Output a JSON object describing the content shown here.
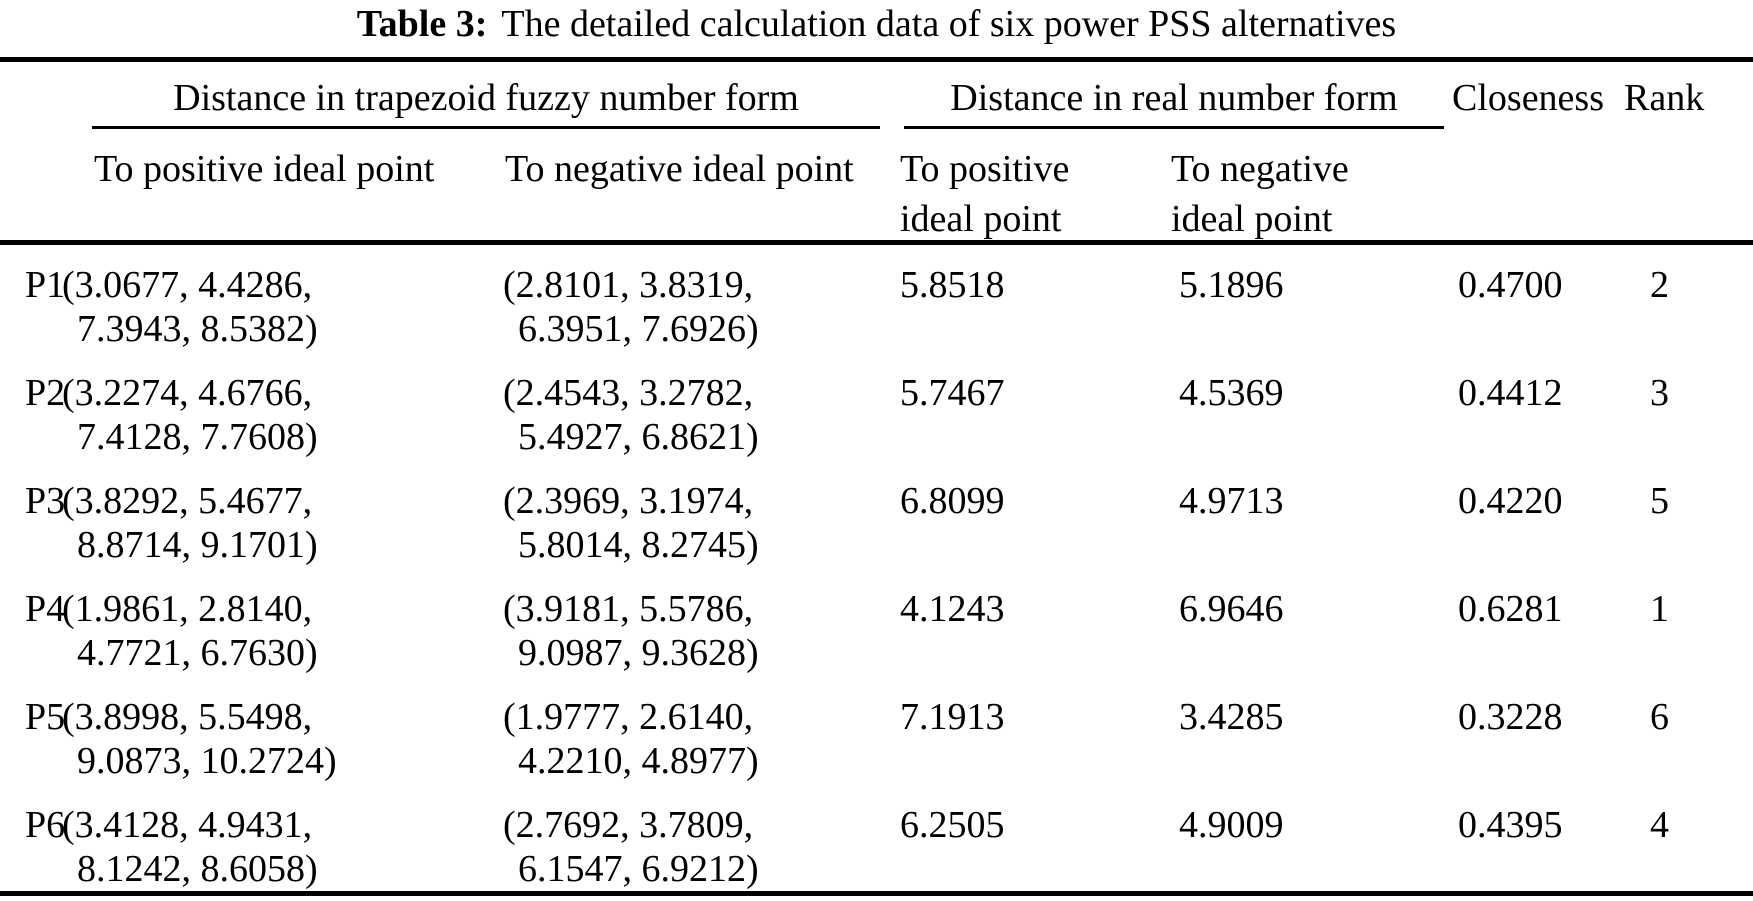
{
  "table": {
    "title": {
      "label": "Table 3:",
      "text": "The detailed calculation data of six power PSS alternatives"
    },
    "groups": {
      "fuzzy": "Distance in trapezoid fuzzy number form",
      "real": "Distance in real number form",
      "closeness": "Closeness",
      "rank": "Rank"
    },
    "subheaders": {
      "fuzzy_pos": "To positive ideal point",
      "fuzzy_neg": "To negative ideal point",
      "real_pos_line1": "To positive",
      "real_pos_line2": "ideal point",
      "real_neg_line1": "To negative",
      "real_neg_line2": "ideal point"
    },
    "rows": [
      {
        "id": "P1",
        "fuzzy_pos1": "(3.0677, 4.4286,",
        "fuzzy_pos2": "7.3943, 8.5382)",
        "fuzzy_neg1": "(2.8101, 3.8319,",
        "fuzzy_neg2": "6.3951, 7.6926)",
        "real_pos": "5.8518",
        "real_neg": "5.1896",
        "closeness": "0.4700",
        "rank": "2"
      },
      {
        "id": "P2",
        "fuzzy_pos1": "(3.2274, 4.6766,",
        "fuzzy_pos2": "7.4128, 7.7608)",
        "fuzzy_neg1": "(2.4543, 3.2782,",
        "fuzzy_neg2": "5.4927, 6.8621)",
        "real_pos": "5.7467",
        "real_neg": "4.5369",
        "closeness": "0.4412",
        "rank": "3"
      },
      {
        "id": "P3",
        "fuzzy_pos1": "(3.8292, 5.4677,",
        "fuzzy_pos2": "8.8714, 9.1701)",
        "fuzzy_neg1": "(2.3969, 3.1974,",
        "fuzzy_neg2": "5.8014, 8.2745)",
        "real_pos": "6.8099",
        "real_neg": "4.9713",
        "closeness": "0.4220",
        "rank": "5"
      },
      {
        "id": "P4",
        "fuzzy_pos1": "(1.9861, 2.8140,",
        "fuzzy_pos2": "4.7721, 6.7630)",
        "fuzzy_neg1": "(3.9181, 5.5786,",
        "fuzzy_neg2": "9.0987, 9.3628)",
        "real_pos": "4.1243",
        "real_neg": "6.9646",
        "closeness": "0.6281",
        "rank": "1"
      },
      {
        "id": "P5",
        "fuzzy_pos1": "(3.8998, 5.5498,",
        "fuzzy_pos2": "9.0873, 10.2724)",
        "fuzzy_neg1": "(1.9777, 2.6140,",
        "fuzzy_neg2": "4.2210, 4.8977)",
        "real_pos": "7.1913",
        "real_neg": "3.4285",
        "closeness": "0.3228",
        "rank": "6"
      },
      {
        "id": "P6",
        "fuzzy_pos1": "(3.4128, 4.9431,",
        "fuzzy_pos2": "8.1242, 8.6058)",
        "fuzzy_neg1": "(2.7692, 3.7809,",
        "fuzzy_neg2": "6.1547, 6.9212)",
        "real_pos": "6.2505",
        "real_neg": "4.9009",
        "closeness": "0.4395",
        "rank": "4"
      }
    ]
  }
}
